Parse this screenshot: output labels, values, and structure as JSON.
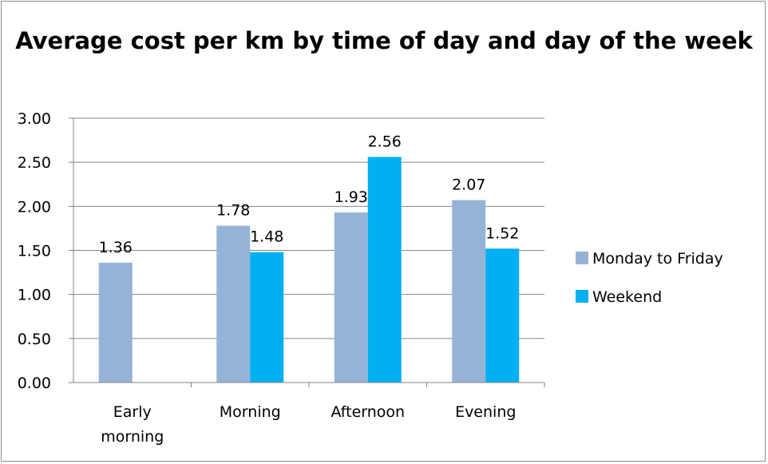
{
  "chart_data": {
    "type": "bar",
    "title": "Average cost per km by time of day and day of the week",
    "categories": [
      "Early morning",
      "Morning",
      "Afternoon",
      "Evening"
    ],
    "series": [
      {
        "name": "Monday to Friday",
        "values": [
          1.36,
          1.78,
          1.93,
          2.07
        ],
        "labels": [
          "1.36",
          "1.78",
          "1.93",
          "2.07"
        ]
      },
      {
        "name": "Weekend",
        "values": [
          null,
          1.48,
          2.56,
          1.52
        ],
        "labels": [
          "",
          "1.48",
          "2.56",
          "1.52"
        ]
      }
    ],
    "ylim": [
      0,
      3
    ],
    "yticks": [
      "0.00",
      "0.50",
      "1.00",
      "1.50",
      "2.00",
      "2.50",
      "3.00"
    ],
    "grid": true,
    "legend_position": "right",
    "colors": {
      "series": [
        "#95b3d7",
        "#00b0f0"
      ],
      "grid": "#868686",
      "axis": "#868686"
    }
  }
}
